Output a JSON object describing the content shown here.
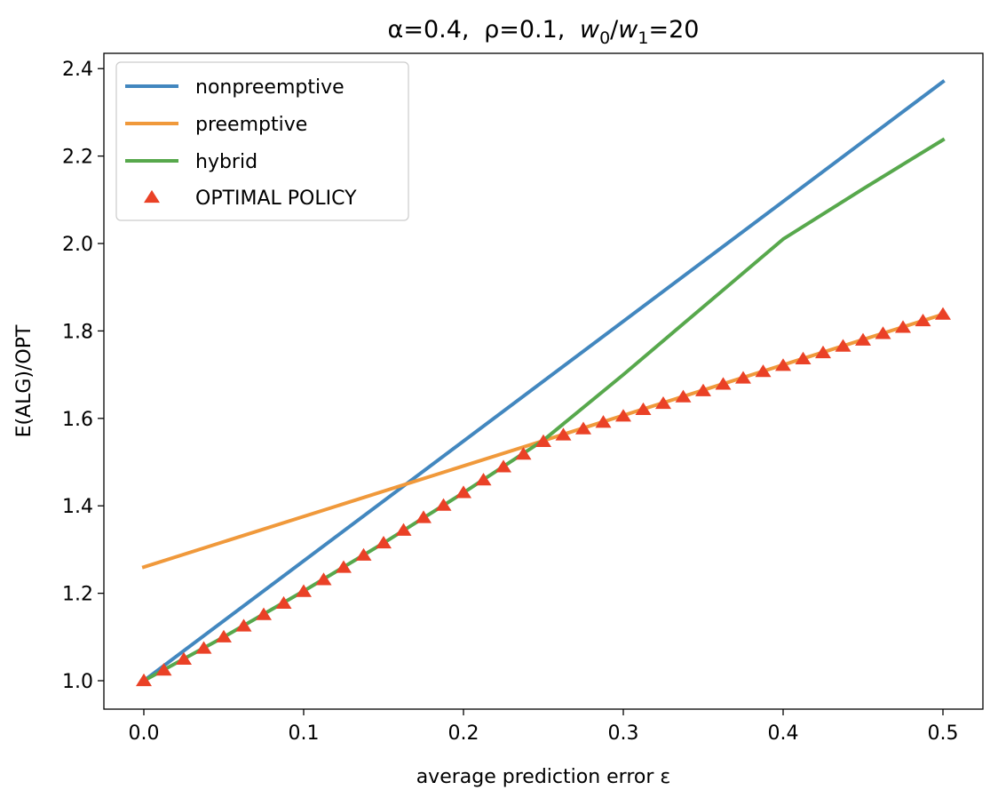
{
  "chart_data": {
    "type": "line",
    "title_parts": {
      "alpha": "α=0.4,",
      "rho": "ρ=0.1,",
      "w0": "w",
      "w0_sub": "0",
      "slash": "/",
      "w1": "w",
      "w1_sub": "1",
      "ratio": "=20"
    },
    "xlabel": "average prediction error ε",
    "ylabel": "E(ALG)/OPT",
    "xlim": [
      -0.025,
      0.525
    ],
    "ylim": [
      0.935,
      2.435
    ],
    "xticks": [
      0.0,
      0.1,
      0.2,
      0.3,
      0.4,
      0.5
    ],
    "xtick_labels": [
      "0.0",
      "0.1",
      "0.2",
      "0.3",
      "0.4",
      "0.5"
    ],
    "yticks": [
      1.0,
      1.2,
      1.4,
      1.6,
      1.8,
      2.0,
      2.2,
      2.4
    ],
    "ytick_labels": [
      "1.0",
      "1.2",
      "1.4",
      "1.6",
      "1.8",
      "2.0",
      "2.2",
      "2.4"
    ],
    "grid": false,
    "legend_position": "top-left",
    "series": [
      {
        "name": "nonpreemptive",
        "color": "#4287bf",
        "style": "line",
        "x": [
          0.0,
          0.5
        ],
        "y": [
          1.0,
          2.37
        ]
      },
      {
        "name": "preemptive",
        "color": "#f0993b",
        "style": "line",
        "x": [
          0.0,
          0.5
        ],
        "y": [
          1.26,
          1.838
        ]
      },
      {
        "name": "hybrid",
        "color": "#57a84c",
        "style": "line",
        "x": [
          0.0,
          0.05,
          0.1,
          0.15,
          0.2,
          0.25,
          0.3,
          0.35,
          0.4,
          0.45,
          0.5
        ],
        "y": [
          1.0,
          1.1,
          1.205,
          1.315,
          1.43,
          1.55,
          1.7,
          1.855,
          2.01,
          2.125,
          2.237
        ]
      },
      {
        "name": "OPTIMAL POLICY",
        "color": "#ea4126",
        "style": "triangle",
        "x": [
          0.0,
          0.0125,
          0.025,
          0.0375,
          0.05,
          0.0625,
          0.075,
          0.0875,
          0.1,
          0.1125,
          0.125,
          0.1375,
          0.15,
          0.1625,
          0.175,
          0.1875,
          0.2,
          0.2125,
          0.225,
          0.2375,
          0.25,
          0.2625,
          0.275,
          0.2875,
          0.3,
          0.3125,
          0.325,
          0.3375,
          0.35,
          0.3625,
          0.375,
          0.3875,
          0.4,
          0.4125,
          0.425,
          0.4375,
          0.45,
          0.4625,
          0.475,
          0.4875,
          0.5
        ],
        "y": [
          1.0,
          1.024,
          1.049,
          1.074,
          1.1,
          1.125,
          1.151,
          1.177,
          1.204,
          1.231,
          1.259,
          1.287,
          1.315,
          1.344,
          1.373,
          1.401,
          1.43,
          1.459,
          1.489,
          1.518,
          1.547,
          1.562,
          1.576,
          1.591,
          1.605,
          1.62,
          1.634,
          1.649,
          1.663,
          1.678,
          1.692,
          1.707,
          1.721,
          1.736,
          1.75,
          1.765,
          1.779,
          1.794,
          1.808,
          1.823,
          1.838
        ]
      }
    ]
  }
}
